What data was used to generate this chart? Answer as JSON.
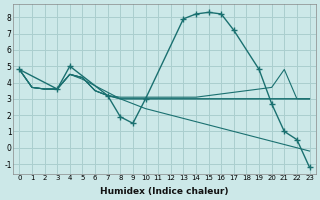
{
  "background_color": "#cce8e8",
  "grid_color": "#aacece",
  "line_color": "#1a7070",
  "xlabel": "Humidex (Indice chaleur)",
  "xlim": [
    -0.5,
    23.5
  ],
  "ylim": [
    -1.6,
    8.8
  ],
  "xticks": [
    0,
    1,
    2,
    3,
    4,
    5,
    6,
    7,
    8,
    9,
    10,
    11,
    12,
    13,
    14,
    15,
    16,
    17,
    18,
    19,
    20,
    21,
    22,
    23
  ],
  "yticks": [
    -1,
    0,
    1,
    2,
    3,
    4,
    5,
    6,
    7,
    8
  ],
  "series": [
    {
      "x": [
        0,
        1,
        2,
        3,
        4,
        5,
        6,
        7,
        8,
        9,
        10,
        11,
        12,
        13,
        14,
        15,
        16,
        17,
        18,
        19,
        20,
        21,
        22,
        23
      ],
      "y": [
        4.8,
        3.7,
        3.6,
        3.6,
        4.5,
        4.3,
        3.5,
        3.2,
        3.1,
        3.1,
        3.1,
        3.1,
        3.1,
        3.1,
        3.1,
        3.2,
        3.3,
        3.4,
        3.5,
        3.6,
        3.7,
        4.8,
        3.0,
        3.0
      ],
      "markers": false
    },
    {
      "x": [
        0,
        1,
        2,
        3,
        4,
        5,
        6,
        7,
        8,
        9,
        10,
        11,
        12,
        13,
        14,
        15,
        16,
        17,
        18,
        19,
        20,
        21,
        22,
        23
      ],
      "y": [
        4.8,
        3.7,
        3.6,
        3.6,
        4.5,
        4.3,
        3.5,
        3.2,
        3.0,
        3.0,
        3.0,
        3.0,
        3.0,
        3.0,
        3.0,
        3.0,
        3.0,
        3.0,
        3.0,
        3.0,
        3.0,
        3.0,
        3.0,
        3.0
      ],
      "markers": false
    },
    {
      "x": [
        0,
        1,
        2,
        3,
        4,
        5,
        6,
        7,
        8,
        9,
        10,
        11,
        12,
        13,
        14,
        15,
        16,
        17,
        18,
        19,
        20,
        21,
        22,
        23
      ],
      "y": [
        4.8,
        3.7,
        3.6,
        3.6,
        4.5,
        4.3,
        3.5,
        3.2,
        3.0,
        3.0,
        3.0,
        3.0,
        3.0,
        3.0,
        3.0,
        3.0,
        3.0,
        3.0,
        3.0,
        3.0,
        3.0,
        3.0,
        3.0,
        3.0
      ],
      "markers": false
    },
    {
      "x": [
        0,
        1,
        2,
        3,
        4,
        5,
        6,
        7,
        8,
        9,
        10,
        11,
        12,
        13,
        14,
        15,
        16,
        17,
        18,
        19,
        20,
        21,
        22,
        23
      ],
      "y": [
        4.8,
        3.7,
        3.6,
        3.6,
        4.5,
        4.2,
        3.8,
        3.4,
        3.0,
        2.7,
        2.4,
        2.2,
        2.0,
        1.8,
        1.6,
        1.4,
        1.2,
        1.0,
        0.8,
        0.6,
        0.4,
        0.2,
        0.0,
        -0.2
      ],
      "markers": false
    },
    {
      "x": [
        0,
        3,
        4,
        7,
        8,
        9,
        10,
        13,
        14,
        15,
        16,
        17,
        19,
        20,
        21,
        22,
        23
      ],
      "y": [
        4.8,
        3.6,
        5.0,
        3.2,
        1.9,
        1.5,
        3.0,
        7.9,
        8.2,
        8.3,
        8.2,
        7.2,
        4.8,
        2.7,
        1.0,
        0.5,
        -1.2
      ],
      "markers": true
    }
  ]
}
